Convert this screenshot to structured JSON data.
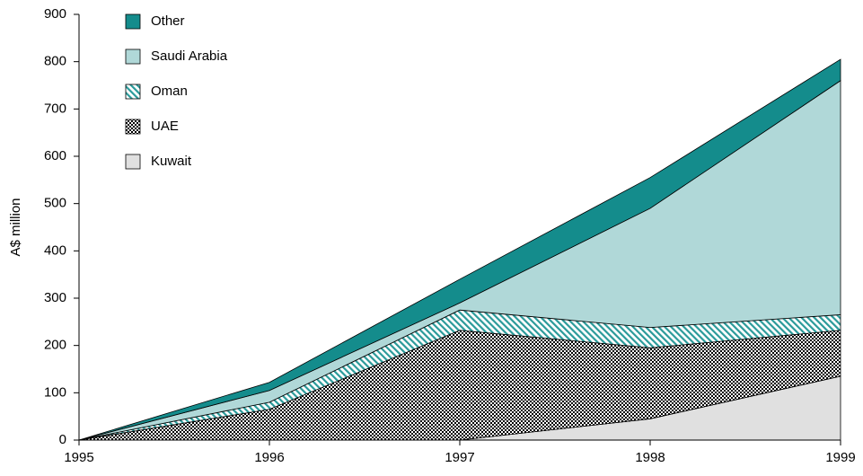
{
  "chart_data": {
    "type": "stacked_area",
    "y_label": "A$ million",
    "x": [
      1995,
      1996,
      1997,
      1998,
      1999
    ],
    "xlim": [
      1995,
      1999
    ],
    "xticks": [
      1995,
      1996,
      1997,
      1998,
      1999
    ],
    "ylim": [
      0,
      900
    ],
    "yticks": [
      0,
      100,
      200,
      300,
      400,
      500,
      600,
      700,
      800,
      900
    ],
    "grid": false,
    "legend": "top-left",
    "series": [
      {
        "name": "Kuwait",
        "color": "#e0e0e0",
        "pattern": "solid",
        "values": [
          0,
          0,
          0,
          45,
          135
        ]
      },
      {
        "name": "UAE",
        "color": "#000000",
        "pattern": "checker",
        "values": [
          0,
          65,
          232,
          150,
          97
        ]
      },
      {
        "name": "Oman",
        "color": "#2a9a9a",
        "pattern": "hatch",
        "values": [
          0,
          15,
          43,
          43,
          33
        ]
      },
      {
        "name": "Saudi Arabia",
        "color": "#b0d8d8",
        "pattern": "solid",
        "values": [
          0,
          25,
          15,
          252,
          495
        ]
      },
      {
        "name": "Other",
        "color": "#148c8c",
        "pattern": "solid",
        "values": [
          0,
          17,
          50,
          65,
          45
        ]
      }
    ]
  }
}
